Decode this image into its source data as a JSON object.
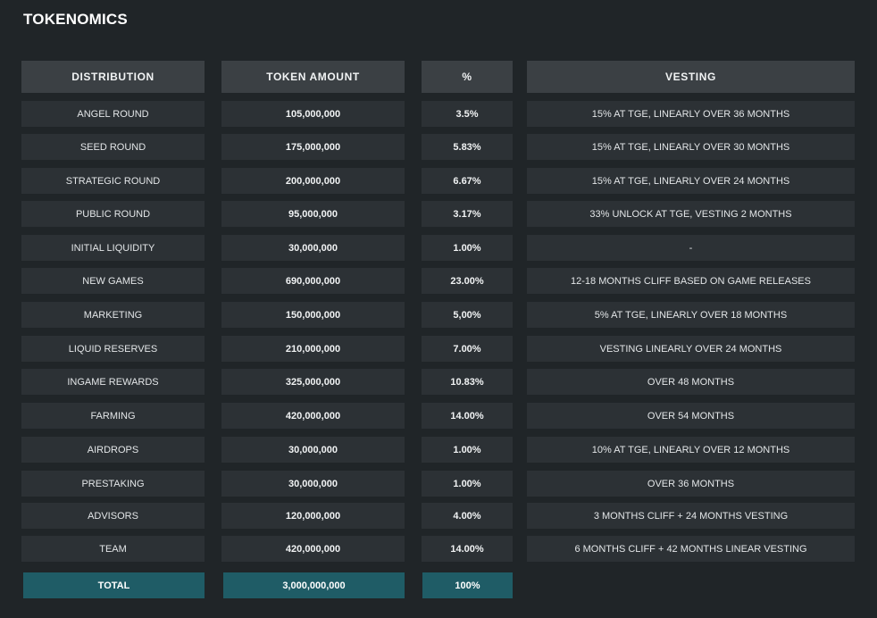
{
  "title": "TOKENOMICS",
  "headers": {
    "distribution": "DISTRIBUTION",
    "token_amount": "TOKEN AMOUNT",
    "percent": "%",
    "vesting": "VESTING"
  },
  "rows": [
    {
      "distribution": "ANGEL ROUND",
      "amount": "105,000,000",
      "percent": "3.5%",
      "vesting": "15% AT TGE, LINEARLY OVER 36 MONTHS"
    },
    {
      "distribution": "SEED ROUND",
      "amount": "175,000,000",
      "percent": "5.83%",
      "vesting": "15% AT TGE, LINEARLY OVER 30 MONTHS"
    },
    {
      "distribution": "STRATEGIC ROUND",
      "amount": "200,000,000",
      "percent": "6.67%",
      "vesting": "15% AT TGE, LINEARLY OVER 24 MONTHS"
    },
    {
      "distribution": "PUBLIC ROUND",
      "amount": "95,000,000",
      "percent": "3.17%",
      "vesting": "33% UNLOCK AT TGE, VESTING 2 MONTHS"
    },
    {
      "distribution": "INITIAL LIQUIDITY",
      "amount": "30,000,000",
      "percent": "1.00%",
      "vesting": "-"
    },
    {
      "distribution": "NEW GAMES",
      "amount": "690,000,000",
      "percent": "23.00%",
      "vesting": "12-18 MONTHS CLIFF BASED ON GAME RELEASES"
    },
    {
      "distribution": "MARKETING",
      "amount": "150,000,000",
      "percent": "5,00%",
      "vesting": "5% AT TGE, LINEARLY OVER 18 MONTHS"
    },
    {
      "distribution": "LIQUID RESERVES",
      "amount": "210,000,000",
      "percent": "7.00%",
      "vesting": "VESTING LINEARLY OVER 24 MONTHS"
    },
    {
      "distribution": "INGAME REWARDS",
      "amount": "325,000,000",
      "percent": "10.83%",
      "vesting": "OVER 48 MONTHS"
    },
    {
      "distribution": "FARMING",
      "amount": "420,000,000",
      "percent": "14.00%",
      "vesting": "OVER 54 MONTHS"
    },
    {
      "distribution": "AIRDROPS",
      "amount": "30,000,000",
      "percent": "1.00%",
      "vesting": "10% AT TGE, LINEARLY OVER 12 MONTHS"
    },
    {
      "distribution": "PRESTAKING",
      "amount": "30,000,000",
      "percent": "1.00%",
      "vesting": "OVER 36 MONTHS"
    },
    {
      "distribution": "ADVISORS",
      "amount": "120,000,000",
      "percent": "4.00%",
      "vesting": "3 MONTHS CLIFF + 24 MONTHS VESTING"
    },
    {
      "distribution": "TEAM",
      "amount": "420,000,000",
      "percent": "14.00%",
      "vesting": "6 MONTHS CLIFF + 42 MONTHS LINEAR VESTING"
    }
  ],
  "total": {
    "label": "TOTAL",
    "amount": "3,000,000,000",
    "percent": "100%"
  },
  "colors": {
    "background": "#202528",
    "header_cell": "#3b4044",
    "row_cell": "#2c3135",
    "total_cell": "#1f5c66"
  }
}
